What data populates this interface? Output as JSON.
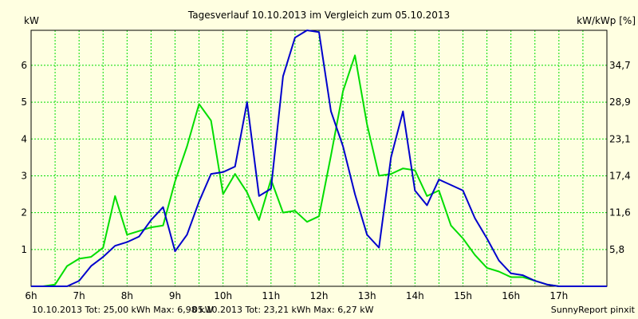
{
  "chart_data": {
    "type": "line",
    "title": "Tagesverlauf 10.10.2013 im Vergleich zum 05.10.2013",
    "ylabel_left": "kW",
    "ylabel_right": "kW/kWp [%]",
    "x_ticks": [
      "6h",
      "7h",
      "8h",
      "9h",
      "10h",
      "11h",
      "12h",
      "13h",
      "14h",
      "15h",
      "16h",
      "17h"
    ],
    "y_ticks_left": [
      "1",
      "2",
      "3",
      "4",
      "5",
      "6"
    ],
    "y_ticks_right": [
      "5,8",
      "11,6",
      "17,4",
      "23,1",
      "28,9",
      "34,7"
    ],
    "xlim": [
      6,
      18
    ],
    "ylim": [
      0,
      6.95
    ],
    "grid": true,
    "colors": {
      "background": "#ffffe1",
      "grid": "#00dd00",
      "axis": "#000000"
    },
    "series": [
      {
        "name": "10.10.2013",
        "color": "#0000cc",
        "x": [
          6.0,
          6.25,
          6.5,
          6.75,
          7.0,
          7.25,
          7.5,
          7.75,
          8.0,
          8.25,
          8.5,
          8.75,
          9.0,
          9.25,
          9.5,
          9.75,
          10.0,
          10.25,
          10.5,
          10.75,
          11.0,
          11.25,
          11.5,
          11.75,
          12.0,
          12.25,
          12.5,
          12.75,
          13.0,
          13.25,
          13.5,
          13.75,
          14.0,
          14.25,
          14.5,
          14.75,
          15.0,
          15.25,
          15.5,
          15.75,
          16.0,
          16.25,
          16.5,
          16.75,
          17.0,
          17.25,
          17.5,
          17.75,
          18.0
        ],
        "y": [
          0.0,
          0.0,
          0.0,
          0.0,
          0.15,
          0.55,
          0.8,
          1.1,
          1.2,
          1.35,
          1.8,
          2.15,
          0.95,
          1.4,
          2.3,
          3.05,
          3.1,
          3.25,
          5.0,
          2.45,
          2.65,
          5.7,
          6.75,
          6.95,
          6.9,
          4.75,
          3.8,
          2.5,
          1.4,
          1.05,
          3.5,
          4.75,
          2.6,
          2.2,
          2.9,
          2.75,
          2.6,
          1.85,
          1.3,
          0.7,
          0.35,
          0.3,
          0.15,
          0.05,
          0.0,
          0.0,
          0.0,
          0.0,
          0.0
        ]
      },
      {
        "name": "05.10.2013",
        "color": "#00dd00",
        "x": [
          6.0,
          6.25,
          6.5,
          6.75,
          7.0,
          7.25,
          7.5,
          7.75,
          8.0,
          8.25,
          8.5,
          8.75,
          9.0,
          9.25,
          9.5,
          9.75,
          10.0,
          10.25,
          10.5,
          10.75,
          11.0,
          11.25,
          11.5,
          11.75,
          12.0,
          12.25,
          12.5,
          12.75,
          13.0,
          13.25,
          13.5,
          13.75,
          14.0,
          14.25,
          14.5,
          14.75,
          15.0,
          15.25,
          15.5,
          15.75,
          16.0,
          16.25,
          16.5,
          16.75,
          17.0,
          17.25,
          17.5,
          17.75,
          18.0
        ],
        "y": [
          0.0,
          0.0,
          0.05,
          0.55,
          0.75,
          0.8,
          1.05,
          2.45,
          1.4,
          1.5,
          1.6,
          1.65,
          2.85,
          3.8,
          4.95,
          4.5,
          2.5,
          3.05,
          2.55,
          1.8,
          2.9,
          2.0,
          2.05,
          1.75,
          1.9,
          3.55,
          5.3,
          6.27,
          4.4,
          3.0,
          3.05,
          3.2,
          3.15,
          2.45,
          2.6,
          1.65,
          1.3,
          0.85,
          0.5,
          0.4,
          0.25,
          0.25,
          0.15,
          0.05,
          0.0,
          0.0,
          0.0,
          0.0,
          0.0
        ]
      }
    ],
    "footer": {
      "left": "10.10.2013 Tot: 25,00 kWh Max: 6,98 kW",
      "middle": "05.10.2013 Tot: 23,21 kWh Max: 6,27 kW",
      "right": "SunnyReport pinxit"
    }
  }
}
